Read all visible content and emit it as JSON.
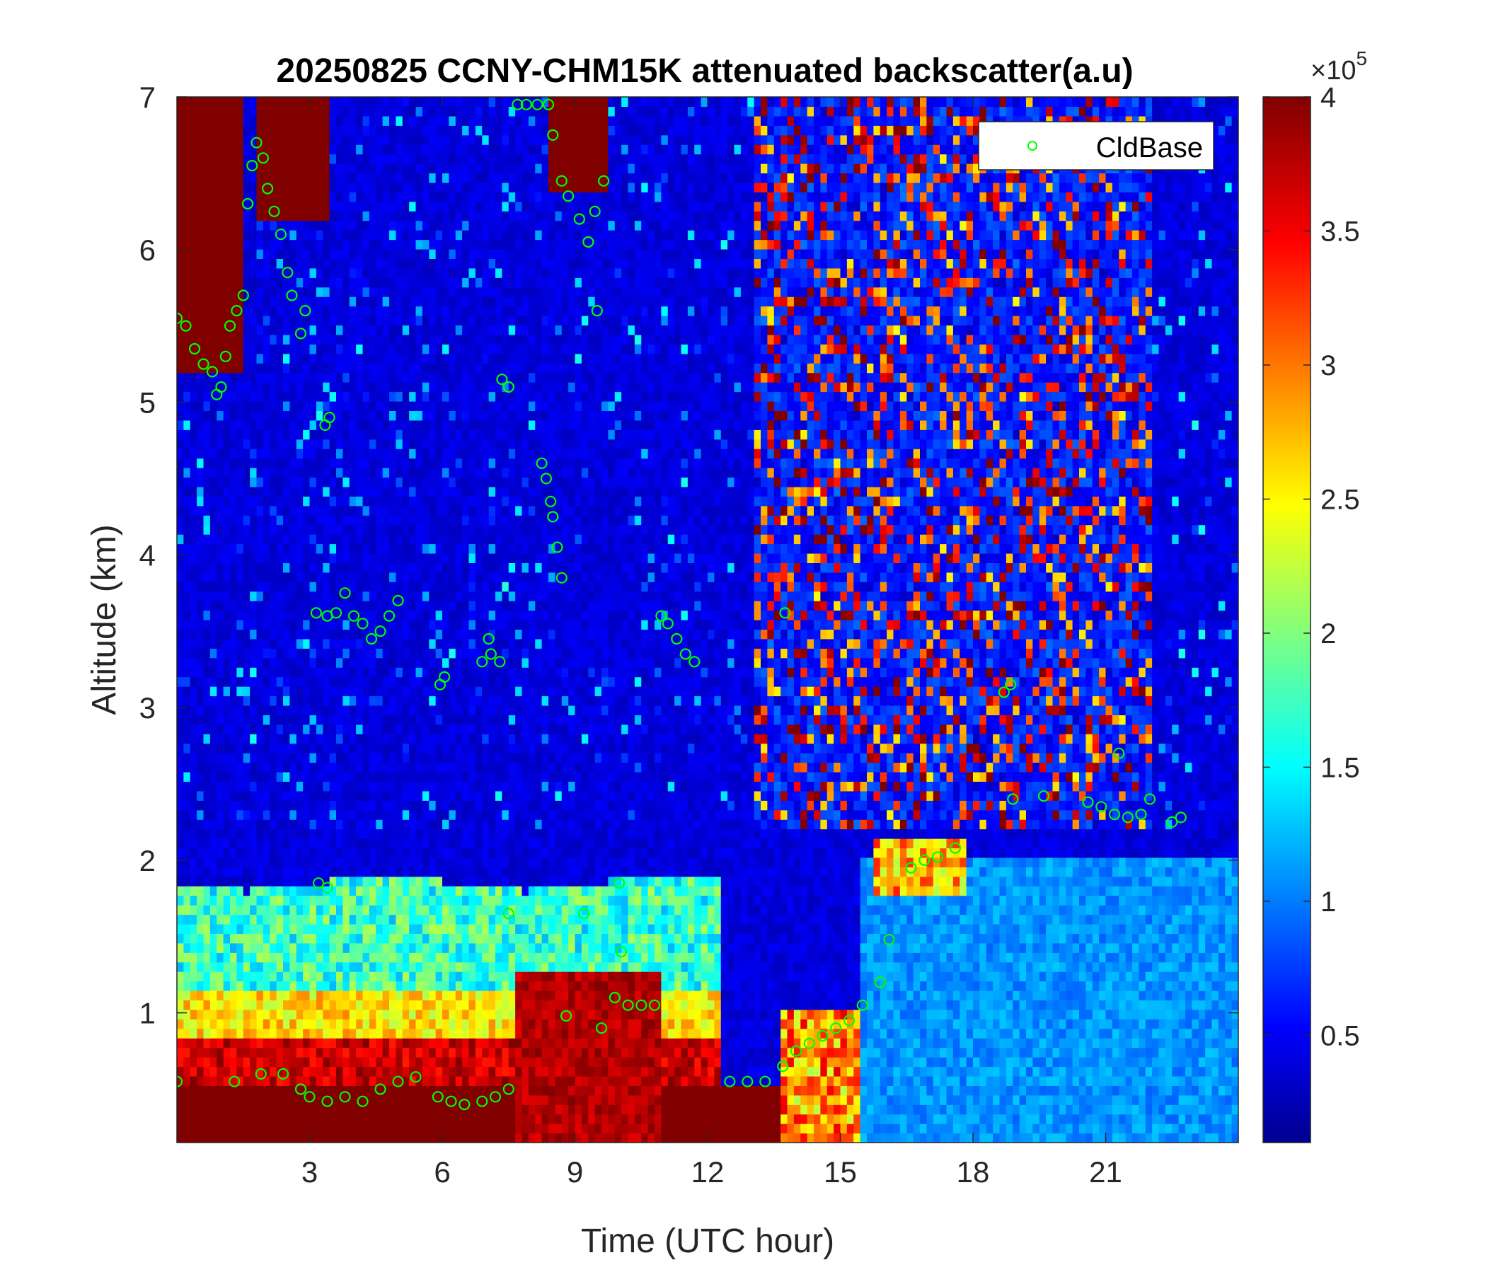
{
  "chart_data": {
    "type": "heatmap",
    "title": "20250825 CCNY-CHM15K attenuated backscatter(a.u)",
    "xlabel": "Time (UTC hour)",
    "ylabel": "Altitude (km)",
    "xlim": [
      0,
      24
    ],
    "ylim": [
      0.15,
      7
    ],
    "x_ticks": [
      3,
      6,
      9,
      12,
      15,
      18,
      21
    ],
    "x_tick_labels": [
      "3",
      "6",
      "9",
      "12",
      "15",
      "18",
      "21"
    ],
    "y_ticks": [
      1,
      2,
      3,
      4,
      5,
      6,
      7
    ],
    "y_tick_labels": [
      "1",
      "2",
      "3",
      "4",
      "5",
      "6",
      "7"
    ],
    "colormap": "jet",
    "colorbar": {
      "exponent_label": "×10",
      "exponent_power": "5",
      "range": [
        0.1,
        4
      ],
      "ticks": [
        0.5,
        1,
        1.5,
        2,
        2.5,
        3,
        3.5,
        4
      ],
      "tick_labels": [
        "0.5",
        "1",
        "1.5",
        "2",
        "2.5",
        "3",
        "3.5",
        "4"
      ]
    },
    "legend": {
      "position": "top-right",
      "entries": [
        "CldBase"
      ]
    },
    "series": [
      {
        "name": "CldBase",
        "marker": "circle",
        "color": "#00ff00",
        "points": [
          [
            0.0,
            5.55
          ],
          [
            0.2,
            5.5
          ],
          [
            0.4,
            5.35
          ],
          [
            0.6,
            5.25
          ],
          [
            0.8,
            5.2
          ],
          [
            0.9,
            5.05
          ],
          [
            1.0,
            5.1
          ],
          [
            1.1,
            5.3
          ],
          [
            1.2,
            5.5
          ],
          [
            1.35,
            5.6
          ],
          [
            1.5,
            5.7
          ],
          [
            1.6,
            6.3
          ],
          [
            1.7,
            6.55
          ],
          [
            1.8,
            6.7
          ],
          [
            1.95,
            6.6
          ],
          [
            2.05,
            6.4
          ],
          [
            2.2,
            6.25
          ],
          [
            2.35,
            6.1
          ],
          [
            2.5,
            5.85
          ],
          [
            2.6,
            5.7
          ],
          [
            2.8,
            5.45
          ],
          [
            2.9,
            5.6
          ],
          [
            3.35,
            4.85
          ],
          [
            3.45,
            4.9
          ],
          [
            3.15,
            3.62
          ],
          [
            3.4,
            3.6
          ],
          [
            3.6,
            3.62
          ],
          [
            3.8,
            3.75
          ],
          [
            4.0,
            3.6
          ],
          [
            4.2,
            3.55
          ],
          [
            4.4,
            3.45
          ],
          [
            4.6,
            3.5
          ],
          [
            4.8,
            3.6
          ],
          [
            5.0,
            3.7
          ],
          [
            5.95,
            3.15
          ],
          [
            6.05,
            3.2
          ],
          [
            6.9,
            3.3
          ],
          [
            7.1,
            3.35
          ],
          [
            7.3,
            3.3
          ],
          [
            7.05,
            3.45
          ],
          [
            7.35,
            5.15
          ],
          [
            7.5,
            5.1
          ],
          [
            7.7,
            6.95
          ],
          [
            7.9,
            6.95
          ],
          [
            8.15,
            6.95
          ],
          [
            8.25,
            4.6
          ],
          [
            8.35,
            4.5
          ],
          [
            8.45,
            4.35
          ],
          [
            8.5,
            4.25
          ],
          [
            8.6,
            4.05
          ],
          [
            8.7,
            3.85
          ],
          [
            8.4,
            6.95
          ],
          [
            8.5,
            6.75
          ],
          [
            8.7,
            6.45
          ],
          [
            8.85,
            6.35
          ],
          [
            9.1,
            6.2
          ],
          [
            9.3,
            6.05
          ],
          [
            9.45,
            6.25
          ],
          [
            9.5,
            5.6
          ],
          [
            9.65,
            6.45
          ],
          [
            10.95,
            3.6
          ],
          [
            11.1,
            3.55
          ],
          [
            11.3,
            3.45
          ],
          [
            11.5,
            3.35
          ],
          [
            11.7,
            3.3
          ],
          [
            13.75,
            3.62
          ],
          [
            18.7,
            3.1
          ],
          [
            18.85,
            3.15
          ],
          [
            3.2,
            1.85
          ],
          [
            3.4,
            1.82
          ],
          [
            7.5,
            1.65
          ],
          [
            9.2,
            1.65
          ],
          [
            10.0,
            1.85
          ],
          [
            10.05,
            1.4
          ],
          [
            0.0,
            0.55
          ],
          [
            1.3,
            0.55
          ],
          [
            1.9,
            0.6
          ],
          [
            2.4,
            0.6
          ],
          [
            2.8,
            0.5
          ],
          [
            3.0,
            0.45
          ],
          [
            3.4,
            0.42
          ],
          [
            3.8,
            0.45
          ],
          [
            4.2,
            0.42
          ],
          [
            4.6,
            0.5
          ],
          [
            5.0,
            0.55
          ],
          [
            5.4,
            0.58
          ],
          [
            5.9,
            0.45
          ],
          [
            6.2,
            0.42
          ],
          [
            6.5,
            0.4
          ],
          [
            6.9,
            0.42
          ],
          [
            7.2,
            0.45
          ],
          [
            7.5,
            0.5
          ],
          [
            8.8,
            0.98
          ],
          [
            9.6,
            0.9
          ],
          [
            9.9,
            1.1
          ],
          [
            10.2,
            1.05
          ],
          [
            10.5,
            1.05
          ],
          [
            10.8,
            1.05
          ],
          [
            12.5,
            0.55
          ],
          [
            12.9,
            0.55
          ],
          [
            13.3,
            0.55
          ],
          [
            13.7,
            0.65
          ],
          [
            14.0,
            0.75
          ],
          [
            14.3,
            0.8
          ],
          [
            14.6,
            0.85
          ],
          [
            14.9,
            0.9
          ],
          [
            15.2,
            0.95
          ],
          [
            15.5,
            1.05
          ],
          [
            15.9,
            1.2
          ],
          [
            16.1,
            1.48
          ],
          [
            16.6,
            1.95
          ],
          [
            16.9,
            2.0
          ],
          [
            17.2,
            2.02
          ],
          [
            17.6,
            2.08
          ],
          [
            18.9,
            2.4
          ],
          [
            19.6,
            2.42
          ],
          [
            20.6,
            2.38
          ],
          [
            20.9,
            2.35
          ],
          [
            21.2,
            2.3
          ],
          [
            21.5,
            2.28
          ],
          [
            21.8,
            2.3
          ],
          [
            22.0,
            2.4
          ],
          [
            22.5,
            2.25
          ],
          [
            22.7,
            2.28
          ],
          [
            21.3,
            2.7
          ]
        ]
      }
    ],
    "grid": false
  }
}
